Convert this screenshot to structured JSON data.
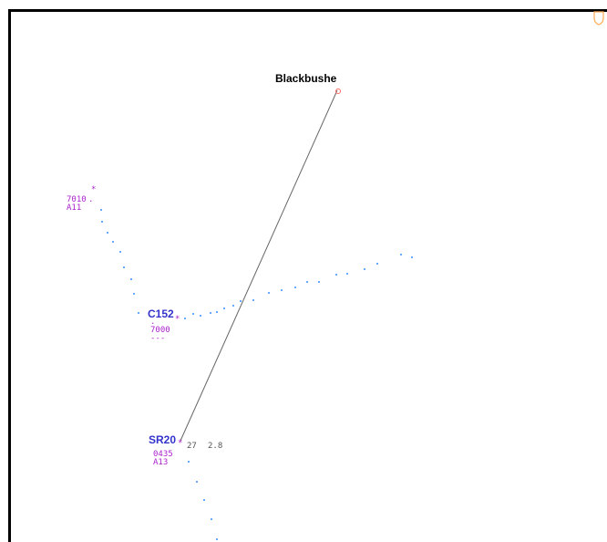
{
  "airport": {
    "name": "Blackbushe"
  },
  "vector_line": {
    "bearing_text": "27",
    "distance_text": "2.8"
  },
  "targets": [
    {
      "id": "t1",
      "callsign": "",
      "squawk": "7010",
      "alt": "A11"
    },
    {
      "id": "t2",
      "callsign": "C152",
      "squawk": "7000",
      "alt": "---"
    },
    {
      "id": "t3",
      "callsign": "SR20",
      "squawk": "0435",
      "alt": "A13"
    }
  ],
  "colors": {
    "target_symbol": "#aa22cc",
    "callsign": "#3333cc",
    "history_dots": "#66aaff",
    "airport_symbol": "#ff6666",
    "vector_line": "#666666",
    "corner_icon": "#ffaa55"
  }
}
